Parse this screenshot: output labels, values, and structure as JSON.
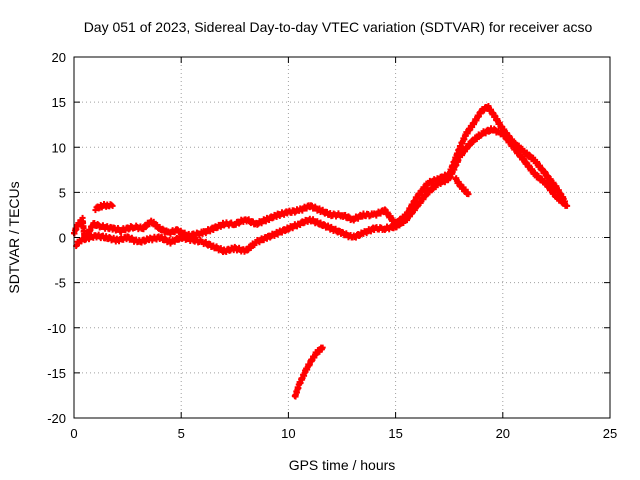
{
  "chart_data": {
    "type": "scatter",
    "title": "Day 051 of 2023, Sidereal Day-to-day VTEC variation (SDTVAR) for receiver acso",
    "xlabel": "GPS time / hours",
    "ylabel": "SDTVAR / TECUs",
    "xlim": [
      0,
      25
    ],
    "ylim": [
      -20,
      20
    ],
    "xticks": [
      0,
      5,
      10,
      15,
      20,
      25
    ],
    "yticks": [
      -20,
      -15,
      -10,
      -5,
      0,
      5,
      10,
      15,
      20
    ],
    "grid": true,
    "marker_color": "#ff0000",
    "series": [
      {
        "name": "main trace upper",
        "x": [
          0.0,
          0.2,
          0.4,
          0.5,
          0.9,
          1.3,
          1.8,
          2.2,
          2.8,
          3.2,
          3.6,
          4.0,
          4.4,
          4.8,
          5.3,
          6.0,
          6.5,
          7.0,
          7.5,
          8.0,
          8.5,
          9.0,
          9.5,
          10.0,
          10.5,
          11.0,
          11.5,
          12.0,
          12.5,
          13.0,
          13.5,
          14.0,
          14.5,
          15.0,
          15.5,
          16.0,
          16.5,
          17.0,
          17.5,
          18.0,
          18.3,
          18.6,
          19.0,
          19.3,
          19.6,
          20.0,
          20.5,
          21.0,
          21.5,
          22.0,
          22.5,
          22.9
        ],
        "y": [
          0.5,
          1.5,
          2.0,
          -0.2,
          1.5,
          1.2,
          1.0,
          0.8,
          1.2,
          1.0,
          1.8,
          1.0,
          0.5,
          0.8,
          0.2,
          0.5,
          1.0,
          1.5,
          1.5,
          2.0,
          1.5,
          2.0,
          2.5,
          2.8,
          3.0,
          3.5,
          3.0,
          2.5,
          2.5,
          2.0,
          2.5,
          2.5,
          3.0,
          1.5,
          2.5,
          4.5,
          6.0,
          6.5,
          7.0,
          10.0,
          11.5,
          12.5,
          14.0,
          14.5,
          13.5,
          12.0,
          10.5,
          9.5,
          8.5,
          7.0,
          5.5,
          4.0
        ]
      },
      {
        "name": "main trace lower",
        "x": [
          0.1,
          0.3,
          1.0,
          1.5,
          2.0,
          2.5,
          3.0,
          3.5,
          4.0,
          4.5,
          5.0,
          6.0,
          6.5,
          7.0,
          7.5,
          8.0,
          8.5,
          9.0,
          9.5,
          10.0,
          10.5,
          11.0,
          11.5,
          12.0,
          12.5,
          13.0,
          13.5,
          14.0,
          14.5,
          15.0,
          15.5,
          16.0,
          16.5,
          17.0,
          17.5,
          18.0,
          18.5,
          19.0,
          19.5,
          20.0,
          20.5,
          21.0,
          21.5,
          22.0,
          22.5,
          23.0
        ],
        "y": [
          -0.8,
          -0.3,
          0.2,
          0.0,
          -0.3,
          0.0,
          -0.5,
          -0.2,
          0.0,
          -0.5,
          0.0,
          -0.5,
          -1.0,
          -1.5,
          -1.2,
          -1.5,
          -0.5,
          0.0,
          0.5,
          1.0,
          1.5,
          2.0,
          1.5,
          1.0,
          0.5,
          0.0,
          0.5,
          1.0,
          1.0,
          1.2,
          2.0,
          3.5,
          5.0,
          6.0,
          6.5,
          9.0,
          10.5,
          11.5,
          12.0,
          11.5,
          10.0,
          8.5,
          7.0,
          6.0,
          4.5,
          3.5
        ]
      },
      {
        "name": "isolated segment 1",
        "x": [
          1.0,
          1.3,
          1.6,
          1.8
        ],
        "y": [
          3.2,
          3.5,
          3.6,
          3.5
        ]
      },
      {
        "name": "isolated segment 2",
        "x": [
          17.8,
          18.0,
          18.2,
          18.4
        ],
        "y": [
          6.5,
          5.8,
          5.3,
          4.8
        ]
      },
      {
        "name": "isolated segment 3",
        "x": [
          10.3,
          10.5,
          10.8,
          11.0,
          11.3,
          11.6
        ],
        "y": [
          -17.7,
          -16.3,
          -14.8,
          -13.9,
          -12.8,
          -12.2
        ]
      }
    ]
  }
}
